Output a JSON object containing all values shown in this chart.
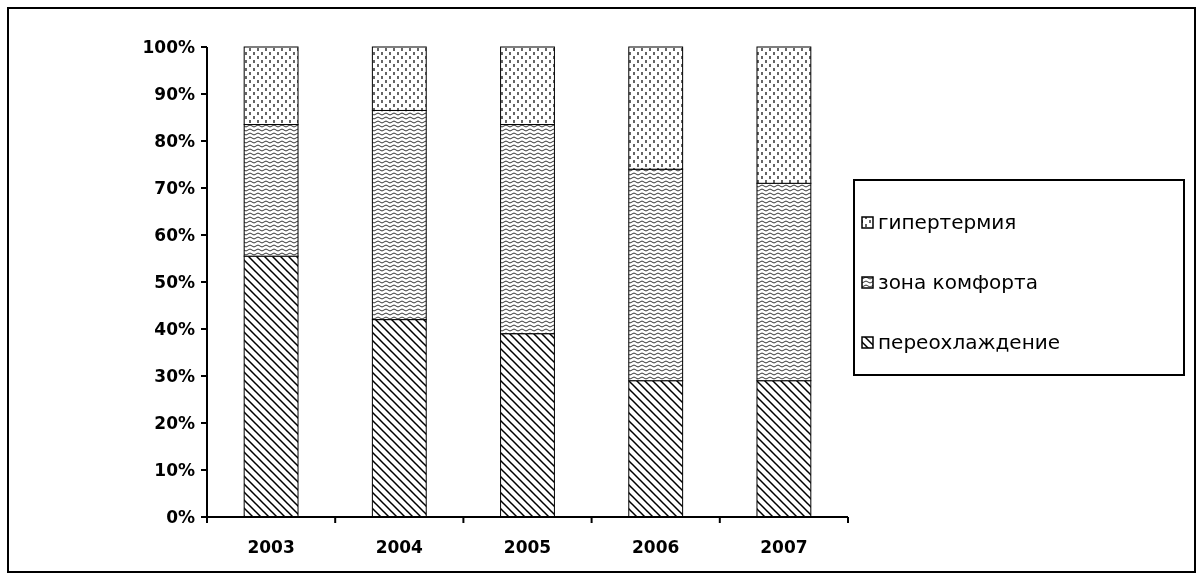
{
  "chart_data": {
    "type": "bar",
    "stacked": true,
    "categories": [
      "2003",
      "2004",
      "2005",
      "2006",
      "2007"
    ],
    "series": [
      {
        "name": "переохлаждение",
        "color": "#000000",
        "values": [
          55.5,
          42,
          39,
          29,
          29
        ]
      },
      {
        "name": "зона комфорта",
        "color": "#000000",
        "values": [
          28,
          44.5,
          44.5,
          45,
          42
        ]
      },
      {
        "name": "гипертермия",
        "color": "#000000",
        "values": [
          16.5,
          13.5,
          16.5,
          26,
          29
        ]
      }
    ],
    "ylim": [
      0,
      100
    ],
    "yticks": [
      {
        "value": 0,
        "label": "0%"
      },
      {
        "value": 10,
        "label": "10%"
      },
      {
        "value": 20,
        "label": "20%"
      },
      {
        "value": 30,
        "label": "30%"
      },
      {
        "value": 40,
        "label": "40%"
      },
      {
        "value": 50,
        "label": "50%"
      },
      {
        "value": 60,
        "label": "60%"
      },
      {
        "value": 70,
        "label": "70%"
      },
      {
        "value": 80,
        "label": "80%"
      },
      {
        "value": 90,
        "label": "90%"
      },
      {
        "value": 100,
        "label": "100%"
      }
    ],
    "grid": false,
    "legend": "right"
  }
}
